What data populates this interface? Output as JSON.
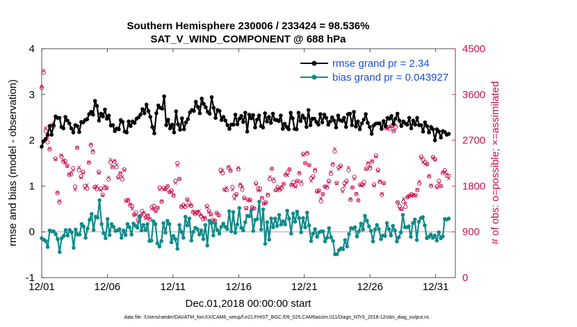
{
  "chart_data": {
    "type": "line",
    "title": "Southern Hemisphere 230006 / 233424 = 98.536%",
    "subtitle": "SAT_V_WIND_COMPONENT @ 688 hPa",
    "xlabel": "Dec.01,2018 00:00:00 start",
    "ylabel": "rmse and bias (model - observation)",
    "y2label": "# of obs: o=possible; ×=assimilated",
    "footer": "data file: /Users/raeder/DAI/ATM_forcXX/CAM6_setup/f.e21.FHIST_BGC.f09_025.CAM6assim.011/Diags_NTrS_2018-12/obs_diag_output.nc",
    "xlim": [
      0,
      31.5
    ],
    "ylim": [
      -1,
      4
    ],
    "y2lim": [
      0,
      4500
    ],
    "xticks": [
      {
        "value": 0,
        "label": "12/01"
      },
      {
        "value": 5,
        "label": "12/06"
      },
      {
        "value": 10,
        "label": "12/11"
      },
      {
        "value": 15,
        "label": "12/16"
      },
      {
        "value": 20,
        "label": "12/21"
      },
      {
        "value": 25,
        "label": "12/26"
      },
      {
        "value": 30,
        "label": "12/31"
      }
    ],
    "yticks": [
      {
        "value": -1,
        "label": "-1"
      },
      {
        "value": 0,
        "label": "0"
      },
      {
        "value": 1,
        "label": "1"
      },
      {
        "value": 2,
        "label": "2"
      },
      {
        "value": 3,
        "label": "3"
      },
      {
        "value": 4,
        "label": "4"
      }
    ],
    "y2ticks": [
      {
        "value": 0,
        "label": "0"
      },
      {
        "value": 900,
        "label": "900"
      },
      {
        "value": 1800,
        "label": "1800"
      },
      {
        "value": 2700,
        "label": "2700"
      },
      {
        "value": 3600,
        "label": "3600"
      },
      {
        "value": 4500,
        "label": "4500"
      }
    ],
    "legend": {
      "position": "top-right",
      "entries": [
        {
          "name": "rmse grand pr = 2.34",
          "color": "#000000"
        },
        {
          "name": "bias grand pr = 0.043927",
          "color": "#138a8a"
        }
      ]
    },
    "series": [
      {
        "name": "rmse",
        "color": "#000000",
        "axis": "left",
        "values": [
          1.86,
          1.98,
          2.03,
          2.12,
          2.31,
          2.12,
          2.33,
          2.52,
          2.49,
          2.49,
          2.29,
          2.26,
          2.51,
          2.43,
          2.37,
          2.26,
          2.17,
          2.33,
          2.31,
          2.18,
          2.4,
          2.39,
          2.44,
          2.46,
          2.57,
          2.62,
          2.56,
          2.86,
          2.75,
          2.43,
          2.58,
          2.52,
          2.67,
          2.47,
          2.54,
          2.32,
          2.33,
          2.2,
          2.26,
          2.24,
          2.44,
          2.4,
          2.19,
          2.17,
          2.41,
          2.31,
          2.41,
          2.38,
          2.47,
          2.5,
          2.56,
          2.68,
          2.59,
          2.78,
          2.64,
          2.51,
          2.29,
          2.15,
          2.59,
          2.76,
          2.71,
          2.69,
          2.96,
          2.33,
          2.45,
          2.26,
          2.34,
          2.17,
          2.63,
          2.35,
          2.23,
          2.48,
          2.24,
          2.39,
          2.46,
          2.61,
          2.66,
          2.64,
          2.84,
          2.73,
          2.59,
          2.91,
          2.79,
          2.72,
          2.62,
          2.58,
          2.94,
          2.71,
          2.49,
          2.66,
          2.64,
          2.44,
          2.51,
          2.43,
          2.33,
          2.25,
          2.34,
          2.34,
          2.56,
          2.35,
          2.47,
          2.53,
          2.4,
          2.6,
          2.19,
          2.56,
          2.48,
          2.55,
          2.28,
          2.45,
          2.54,
          2.31,
          2.28,
          2.59,
          2.41,
          2.51,
          2.38,
          2.58,
          2.45,
          2.44,
          2.42,
          2.54,
          2.25,
          2.36,
          2.29,
          2.24,
          2.6,
          2.48,
          2.25,
          2.24,
          2.6,
          2.42,
          2.54,
          2.48,
          2.29,
          2.66,
          2.33,
          2.47,
          2.47,
          2.4,
          2.34,
          2.57,
          2.39,
          2.56,
          2.49,
          2.34,
          2.41,
          2.5,
          2.43,
          2.28,
          2.54,
          2.44,
          2.42,
          2.49,
          2.29,
          2.57,
          2.58,
          2.33,
          2.62,
          2.3,
          2.41,
          2.24,
          2.37,
          2.45,
          2.57,
          2.38,
          2.29,
          2.14,
          2.32,
          2.36,
          2.37,
          2.37,
          2.25,
          2.42,
          2.31,
          2.49,
          2.47,
          2.53,
          2.36,
          2.47,
          2.58,
          2.43,
          2.31,
          2.41,
          2.37,
          2.34,
          2.49,
          2.26,
          2.43,
          2.34,
          2.49,
          2.33,
          2.33,
          2.19,
          2.39,
          2.31,
          2.17,
          2.29,
          2.24,
          2.0,
          2.24,
          2.19,
          2.06,
          2.2,
          2.18,
          2.12,
          2.14
        ]
      },
      {
        "name": "bias",
        "color": "#138a8a",
        "axis": "left",
        "values": [
          -0.14,
          -0.17,
          -0.2,
          -0.33,
          0.03,
          0.01,
          0.01,
          -0.05,
          -0.16,
          -0.44,
          -0.14,
          -0.09,
          0.04,
          -0.08,
          0.04,
          -0.01,
          -0.35,
          0.05,
          -0.06,
          -0.06,
          0.17,
          0.12,
          -0.13,
          0.07,
          0.26,
          0.39,
          0.04,
          0.33,
          0.31,
          0.69,
          0.17,
          -0.03,
          -0.14,
          0.28,
          -0.07,
          0.17,
          0.11,
          0.02,
          0.03,
          0.06,
          -0.13,
          0.03,
          -0.07,
          0.17,
          0.1,
          -0.06,
          0.18,
          0.13,
          0.09,
          0.34,
          0.03,
          0.15,
          0.04,
          0.17,
          -0.2,
          -0.19,
          0.23,
          0.17,
          -0.25,
          -0.32,
          -0.2,
          0.19,
          -0.02,
          0.24,
          0.17,
          -0.23,
          -0.09,
          -0.16,
          -0.37,
          0.15,
          0.0,
          -0.13,
          0.33,
          0.14,
          0.29,
          -0.19,
          0.0,
          0.09,
          0.06,
          -0.06,
          0.03,
          -0.16,
          0.15,
          -0.3,
          0.24,
          0.19,
          -0.08,
          0.18,
          0.04,
          -0.04,
          0.11,
          0.18,
          0.11,
          0.06,
          0.45,
          0.01,
          0.43,
          -0.02,
          0.16,
          0.52,
          0.09,
          0.03,
          0.21,
          0.35,
          0.34,
          0.47,
          0.02,
          0.26,
          0.28,
          0.66,
          0.05,
          0.49,
          -0.26,
          0.21,
          -0.17,
          0.29,
          0.1,
          0.29,
          0.13,
          0.37,
          0.16,
          0.23,
          0.16,
          0.46,
          0.29,
          -0.04,
          0.4,
          0.22,
          0.44,
          0.3,
          -0.01,
          0.3,
          0.1,
          0.42,
          0.14,
          -0.2,
          -0.04,
          0.06,
          -0.11,
          -0.01,
          0.01,
          0.01,
          -0.21,
          -0.13,
          0.08,
          -0.12,
          -0.2,
          -0.49,
          -0.49,
          -0.4,
          -0.36,
          -0.38,
          -0.18,
          -0.32,
          -0.05,
          0.08,
          0.07,
          0.1,
          -0.1,
          0.01,
          0.18,
          0.05,
          0.35,
          0.24,
          0.12,
          0.02,
          -0.21,
          0.05,
          0.15,
          0.06,
          -0.16,
          -0.08,
          -0.09,
          0.19,
          0.06,
          -0.08,
          0.13,
          0.03,
          -0.21,
          -0.12,
          -0.01,
          0.37,
          0.1,
          0.1,
          0.12,
          -0.11,
          0.19,
          0.27,
          -0.18,
          0.22,
          0.3,
          0.32,
          0.14,
          -0.14,
          -0.11,
          -0.06,
          -0.13,
          -0.08,
          -0.19,
          -0.01,
          -0.14,
          -0.1,
          0.28,
          0.27,
          0.29
        ]
      }
    ],
    "obs_series": [
      {
        "name": "possible",
        "marker": "o",
        "color": "#c8104f",
        "axis": "right",
        "values": [
          3730,
          4030,
          2880,
          2660,
          2520,
          2990,
          2970,
          2340,
          1660,
          1480,
          2380,
          2280,
          2290,
          2200,
          2020,
          2030,
          2150,
          1790,
          2550,
          2110,
          1990,
          2080,
          1800,
          1750,
          2260,
          2600,
          2470,
          1780,
          1740,
          2080,
          1750,
          1630,
          1760,
          1760,
          1930,
          2260,
          2170,
          2280,
          2170,
          1980,
          2040,
          1930,
          2130,
          1520,
          1520,
          1420,
          1410,
          1240,
          1280,
          1140,
          1210,
          1310,
          1240,
          1180,
          1210,
          1140,
          1390,
          1410,
          1320,
          1370,
          1770,
          1490,
          1760,
          1750,
          1790,
          1680,
          1710,
          1610,
          1900,
          2250,
          1940,
          1390,
          1430,
          1390,
          1540,
          1470,
          1410,
          1290,
          1250,
          1280,
          1260,
          1210,
          1150,
          1160,
          1410,
          1310,
          1250,
          1130,
          1120,
          1270,
          1230,
          2120,
          2050,
          1730,
          1720,
          2160,
          2100,
          1780,
          1600,
          1640,
          2130,
          1810,
          1730,
          1570,
          1370,
          1530,
          1530,
          1380,
          1360,
          1860,
          1750,
          1750,
          1560,
          1460,
          1480,
          1620,
          1940,
          2140,
          1900,
          1720,
          1780,
          1720,
          1760,
          1840,
          2020,
          2070,
          2130,
          1820,
          1880,
          1810,
          1900,
          2050,
          1840,
          2430,
          2250,
          2440,
          2210,
          1950,
          1990,
          2100,
          1700,
          1710,
          1500,
          1640,
          1790,
          1770,
          1900,
          2040,
          2220,
          2480,
          1860,
          2170,
          2200,
          1730,
          1860,
          1900,
          2110,
          1530,
          1770,
          1980,
          1640,
          1520,
          1830,
          1830,
          1880,
          2140,
          2230,
          2150,
          2280,
          1830,
          2400,
          2120,
          1880,
          1630,
          1860,
          2960,
          2960,
          2930,
          2980,
          2880,
          2960,
          1480,
          1410,
          1350,
          1490,
          1390,
          1580,
          1610,
          1640,
          1620,
          1620,
          1720,
          1850,
          2380,
          2320,
          2270,
          2230,
          1990,
          1800,
          2370,
          2330,
          1790,
          1900,
          1800,
          2060,
          2110,
          2000,
          2000
        ]
      },
      {
        "name": "assimilated",
        "marker": "x",
        "color": "#c8104f",
        "axis": "right",
        "values": [
          3760,
          4070,
          2940,
          2750,
          2540,
          3000,
          3040,
          2320,
          1680,
          1510,
          2410,
          2310,
          2250,
          2190,
          2040,
          2070,
          2110,
          1730,
          2560,
          2170,
          1960,
          2050,
          1760,
          1820,
          2270,
          2630,
          2500,
          1770,
          1800,
          2050,
          1720,
          1610,
          1800,
          1760,
          1970,
          2320,
          2180,
          2300,
          2220,
          1960,
          2060,
          1980,
          2110,
          1500,
          1530,
          1450,
          1350,
          1230,
          1240,
          1100,
          1150,
          1260,
          1280,
          1170,
          1230,
          1160,
          1350,
          1350,
          1300,
          1370,
          1730,
          1510,
          1730,
          1730,
          1800,
          1680,
          1690,
          1630,
          1860,
          2210,
          1940,
          1410,
          1390,
          1420,
          1530,
          1420,
          1430,
          1300,
          1260,
          1300,
          1310,
          1230,
          1190,
          1180,
          1380,
          1290,
          1230,
          1110,
          1120,
          1270,
          1220,
          2080,
          2110,
          1730,
          1770,
          2180,
          2110,
          1730,
          1550,
          1620,
          2160,
          1840,
          1780,
          1550,
          1350,
          1520,
          1510,
          1370,
          1360,
          1830,
          1710,
          1710,
          1570,
          1450,
          1470,
          1640,
          1980,
          2140,
          1940,
          1710,
          1750,
          1740,
          1790,
          1840,
          2030,
          2010,
          2130,
          1830,
          1830,
          1780,
          1890,
          2060,
          1890,
          2410,
          2250,
          2460,
          2210,
          1900,
          1960,
          2130,
          1680,
          1700,
          1560,
          1640,
          1790,
          1800,
          1870,
          2080,
          2240,
          2530,
          1850,
          2130,
          2180,
          1690,
          1800,
          1870,
          2160,
          1550,
          1770,
          1940,
          1650,
          1520,
          1810,
          1800,
          1830,
          2130,
          2260,
          2180,
          2290,
          1800,
          2370,
          2090,
          1900,
          1650,
          1850,
          2930,
          2920,
          2970,
          2970,
          2890,
          3000,
          1480,
          1350,
          1340,
          1550,
          1460,
          1580,
          1610,
          1600,
          1620,
          1610,
          1730,
          1890,
          2350,
          2260,
          2230,
          2230,
          2000,
          1820,
          2350,
          2310,
          1770,
          1860,
          1800,
          2070,
          2080,
          2040,
          1950
        ]
      }
    ]
  }
}
